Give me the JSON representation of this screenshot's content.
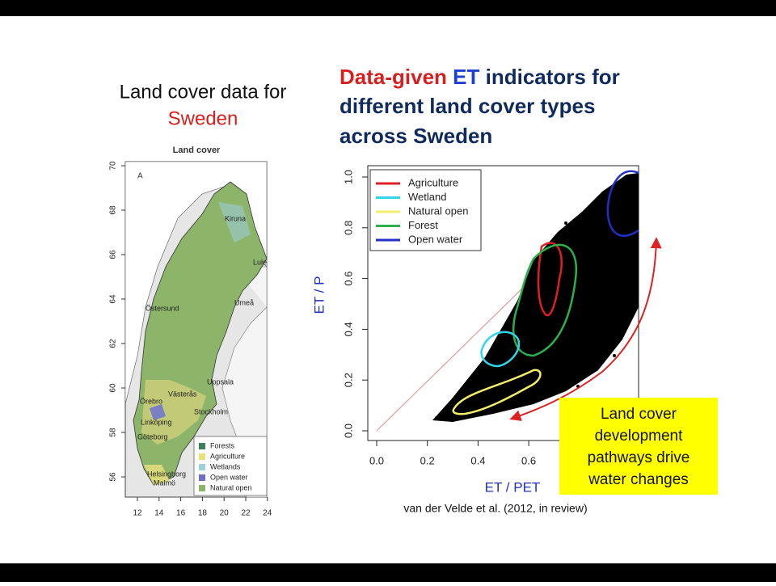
{
  "left": {
    "title": "Land cover data for",
    "title_red": "Sweden",
    "map": {
      "title": "Land cover",
      "panel": "A",
      "yticks": [
        "70",
        "68",
        "66",
        "64",
        "62",
        "60",
        "58",
        "56"
      ],
      "xticks": [
        "12",
        "14",
        "16",
        "18",
        "20",
        "22",
        "24"
      ],
      "cities": [
        "Kiruna",
        "Lule",
        "Umeå",
        "Östersund",
        "Uppsala",
        "Västerås",
        "Örebro",
        "Stockholm",
        "Linköping",
        "Göteborg",
        "Helsingborg",
        "Malmö"
      ],
      "legend": [
        "Forests",
        "Agriculture",
        "Wetlands",
        "Open water",
        "Natural open"
      ]
    }
  },
  "right": {
    "title_part1": "Data-given",
    "title_part2": "ET",
    "title_part3": "indicators for",
    "title_line2": "different land cover types",
    "title_line3": "across Sweden",
    "plot": {
      "ylabel": "ET / P",
      "xlabel": "ET / PET",
      "yticks": [
        "1.0",
        "0.8",
        "0.6",
        "0.4",
        "0.2",
        "0.0"
      ],
      "xticks": [
        "0.0",
        "0.2",
        "0.4",
        "0.6"
      ],
      "legend": [
        "Agriculture",
        "Wetland",
        "Natural open",
        "Forest",
        "Open water"
      ]
    },
    "callout": [
      "Land cover",
      "development",
      "pathways drive",
      "water changes"
    ],
    "citation": "van der Velde et al. (2012, in review)"
  }
}
